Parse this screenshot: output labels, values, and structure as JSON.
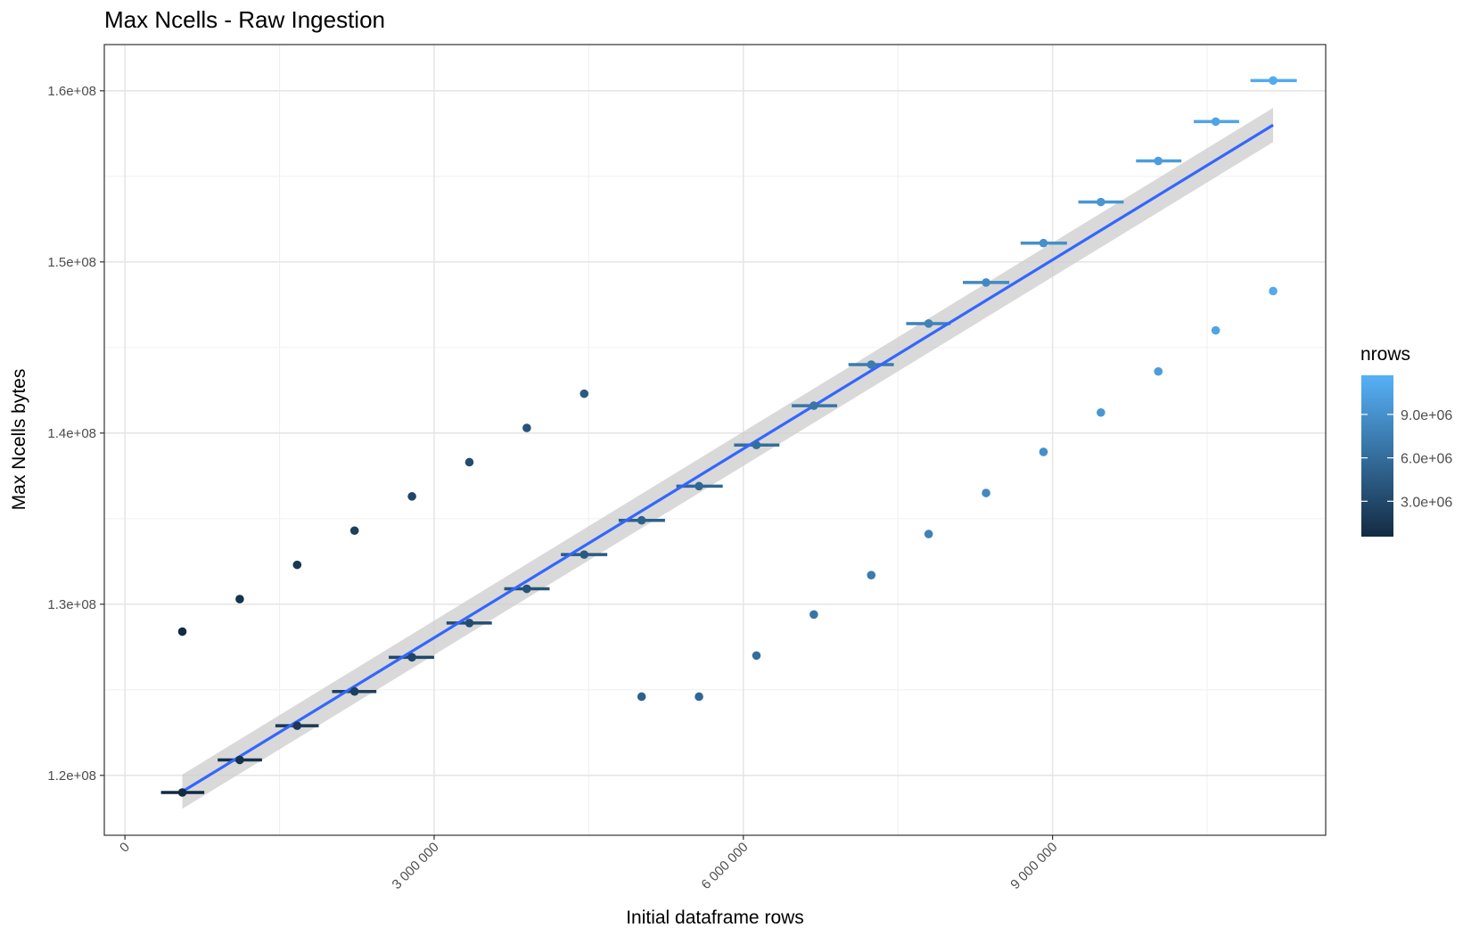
{
  "chart_data": {
    "type": "scatter",
    "title": "Max Ncells - Raw Ingestion",
    "xlabel": "Initial dataframe rows",
    "ylabel": "Max Ncells bytes",
    "xlim": [
      -200000,
      11650000
    ],
    "ylim": [
      116500000,
      162700000
    ],
    "x_ticks": [
      0,
      3000000,
      6000000,
      9000000
    ],
    "x_tick_labels": [
      "0",
      "3 000 000",
      "6 000 000",
      "9 000 000"
    ],
    "y_ticks": [
      120000000,
      130000000,
      140000000,
      150000000,
      160000000
    ],
    "y_tick_labels": [
      "1.2e+08",
      "1.3e+08",
      "1.4e+08",
      "1.5e+08",
      "1.6e+08"
    ],
    "grid": true,
    "color_scale": {
      "name": "nrows",
      "low_color": "#132b43",
      "high_color": "#56b1f7",
      "range": [
        557000,
        11700000
      ],
      "breaks": [
        3000000,
        6000000,
        9000000
      ],
      "break_labels": [
        "3.0e+06",
        "6.0e+06",
        "9.0e+06"
      ]
    },
    "series": [
      {
        "kind": "points_with_bars",
        "points": [
          {
            "x": 557000,
            "y": 119000000,
            "xmin": 350000,
            "xmax": 770000
          },
          {
            "x": 1114000,
            "y": 120900000,
            "xmin": 900000,
            "xmax": 1330000
          },
          {
            "x": 1671000,
            "y": 122900000,
            "xmin": 1460000,
            "xmax": 1880000
          },
          {
            "x": 2228000,
            "y": 124900000,
            "xmin": 2010000,
            "xmax": 2440000
          },
          {
            "x": 2785000,
            "y": 126900000,
            "xmin": 2560000,
            "xmax": 3000000
          },
          {
            "x": 3342000,
            "y": 128900000,
            "xmin": 3120000,
            "xmax": 3560000
          },
          {
            "x": 3899000,
            "y": 130900000,
            "xmin": 3680000,
            "xmax": 4120000
          },
          {
            "x": 4456000,
            "y": 132900000,
            "xmin": 4230000,
            "xmax": 4680000
          },
          {
            "x": 5013000,
            "y": 134900000,
            "xmin": 4790000,
            "xmax": 5240000
          },
          {
            "x": 5570000,
            "y": 136900000,
            "xmin": 5350000,
            "xmax": 5800000
          },
          {
            "x": 6127000,
            "y": 139300000,
            "xmin": 5910000,
            "xmax": 6350000
          },
          {
            "x": 6684000,
            "y": 141600000,
            "xmin": 6470000,
            "xmax": 6910000
          },
          {
            "x": 7241000,
            "y": 144000000,
            "xmin": 7020000,
            "xmax": 7460000
          },
          {
            "x": 7798000,
            "y": 146400000,
            "xmin": 7580000,
            "xmax": 8010000
          },
          {
            "x": 8355000,
            "y": 148800000,
            "xmin": 8130000,
            "xmax": 8580000
          },
          {
            "x": 8912000,
            "y": 151100000,
            "xmin": 8690000,
            "xmax": 9140000
          },
          {
            "x": 9469000,
            "y": 153500000,
            "xmin": 9250000,
            "xmax": 9690000
          },
          {
            "x": 10026000,
            "y": 155900000,
            "xmin": 9810000,
            "xmax": 10250000
          },
          {
            "x": 10583000,
            "y": 158200000,
            "xmin": 10370000,
            "xmax": 10810000
          },
          {
            "x": 11140000,
            "y": 160600000,
            "xmin": 10920000,
            "xmax": 11370000
          }
        ]
      },
      {
        "kind": "points",
        "points": [
          {
            "x": 557000,
            "y": 128400000
          },
          {
            "x": 1114000,
            "y": 130300000
          },
          {
            "x": 1671000,
            "y": 132300000
          },
          {
            "x": 2228000,
            "y": 134300000
          },
          {
            "x": 2785000,
            "y": 136300000
          },
          {
            "x": 3342000,
            "y": 138300000
          },
          {
            "x": 3899000,
            "y": 140300000
          },
          {
            "x": 4456000,
            "y": 142300000
          },
          {
            "x": 5013000,
            "y": 124600000
          },
          {
            "x": 5570000,
            "y": 124600000
          },
          {
            "x": 6127000,
            "y": 127000000
          },
          {
            "x": 6684000,
            "y": 129400000
          },
          {
            "x": 7241000,
            "y": 131700000
          },
          {
            "x": 7798000,
            "y": 134100000
          },
          {
            "x": 8355000,
            "y": 136500000
          },
          {
            "x": 8912000,
            "y": 138900000
          },
          {
            "x": 9469000,
            "y": 141200000
          },
          {
            "x": 10026000,
            "y": 143600000
          },
          {
            "x": 10583000,
            "y": 146000000
          },
          {
            "x": 11140000,
            "y": 148300000
          }
        ]
      }
    ],
    "trend_line": {
      "method": "lm",
      "color": "#3366ff",
      "band_color": "#cccccc",
      "x": [
        557000,
        11140000
      ],
      "y": [
        119050000,
        158000000
      ],
      "band_halfwidth": [
        1000000,
        1000000
      ]
    }
  }
}
